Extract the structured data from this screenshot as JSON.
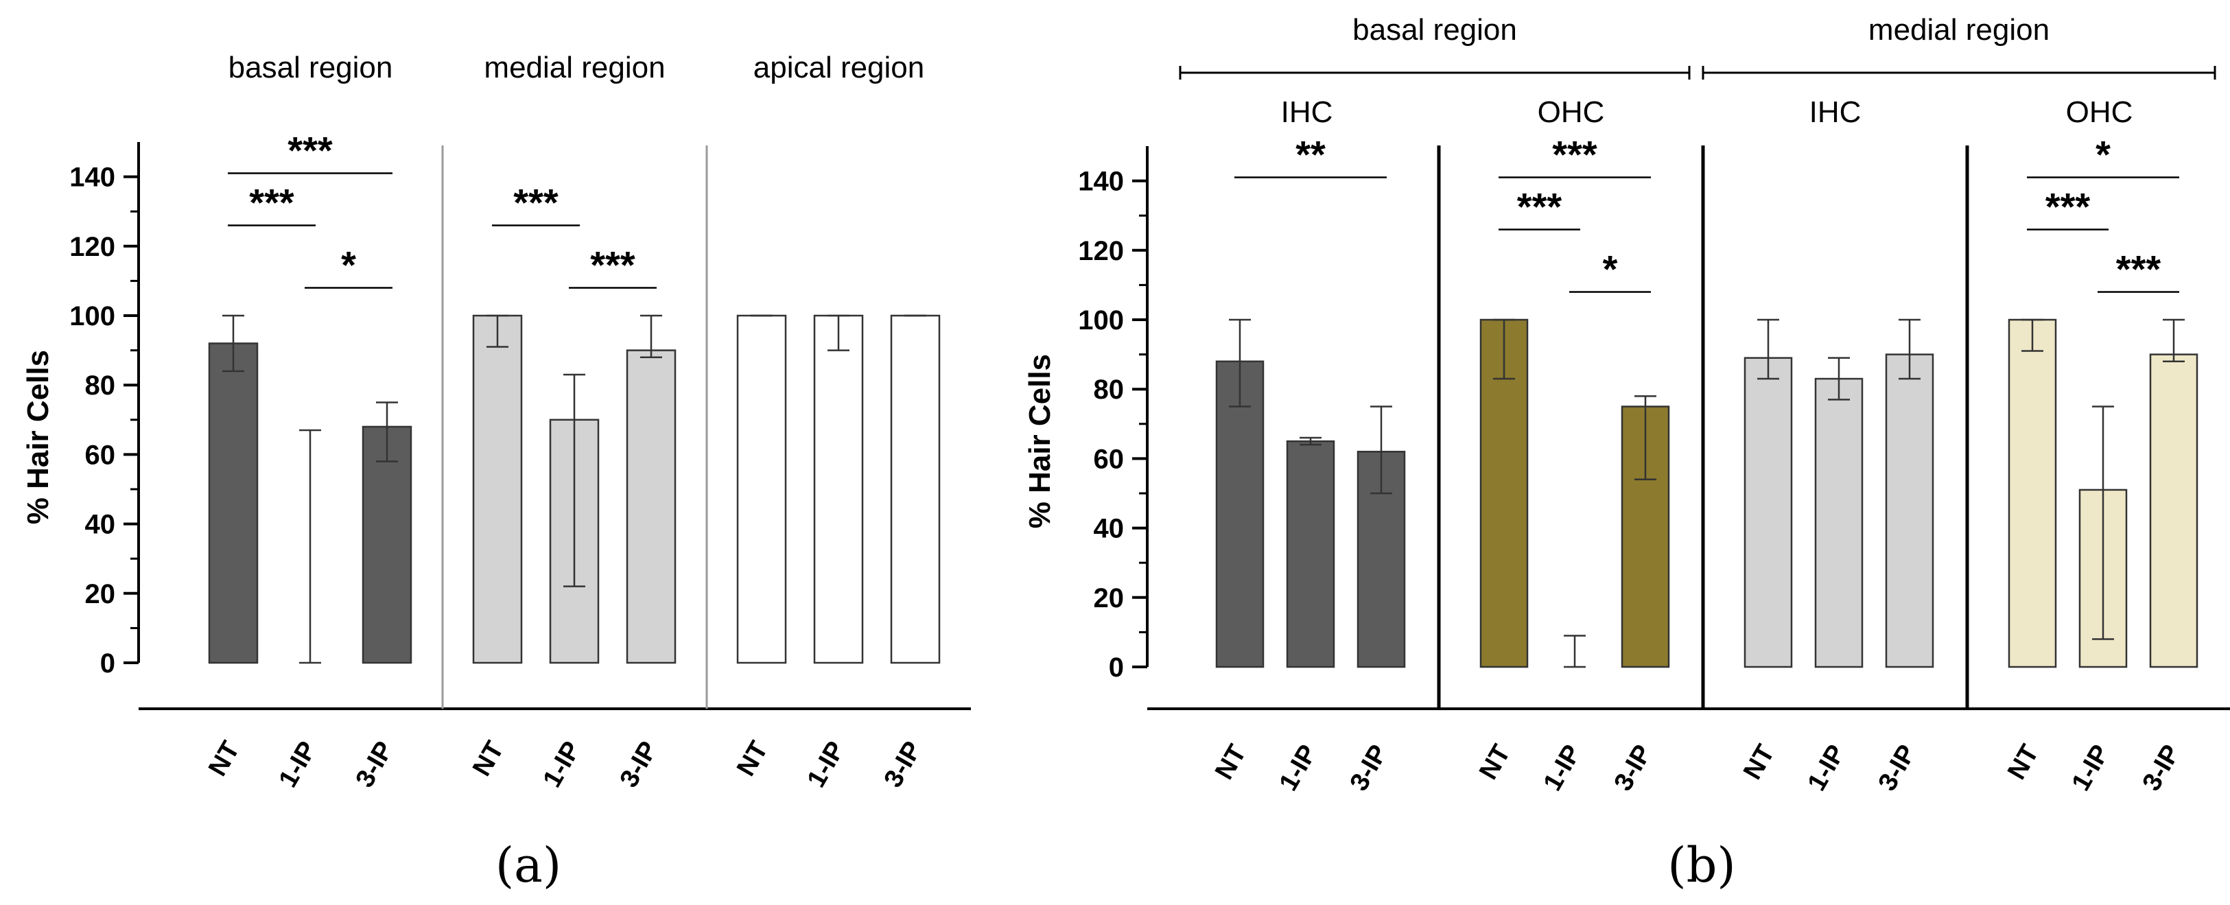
{
  "chart_data": [
    {
      "panel_label": "(a)",
      "type": "bar",
      "ylabel": "% Hair Cells",
      "ylim": [
        0,
        150
      ],
      "yticks": [
        0,
        20,
        40,
        60,
        80,
        100,
        120,
        140
      ],
      "categories": [
        "NT",
        "1-IP",
        "3-IP"
      ],
      "groups": [
        {
          "title": "basal region",
          "color": "#5c5c5c",
          "values": [
            92,
            0,
            68
          ],
          "err_low": [
            84,
            0,
            58
          ],
          "err_high": [
            100,
            67,
            75
          ],
          "brackets": [
            {
              "from": 0,
              "to": 2,
              "label": "***"
            },
            {
              "from": 0,
              "to": 1,
              "label": "***"
            },
            {
              "from": 1,
              "to": 2,
              "label": "*"
            }
          ]
        },
        {
          "title": "medial region",
          "color": "#d3d3d3",
          "values": [
            100,
            70,
            90
          ],
          "err_low": [
            91,
            22,
            88
          ],
          "err_high": [
            100,
            83,
            100
          ],
          "brackets": [
            {
              "from": 0,
              "to": 1,
              "label": "***"
            },
            {
              "from": 1,
              "to": 2,
              "label": "***"
            }
          ]
        },
        {
          "title": "apical region",
          "color": "#ffffff",
          "values": [
            100,
            100,
            100
          ],
          "err_low": [
            100,
            90,
            100
          ],
          "err_high": [
            100,
            100,
            100
          ],
          "brackets": []
        }
      ]
    },
    {
      "panel_label": "(b)",
      "type": "bar",
      "ylabel": "% Hair Cells",
      "ylim": [
        0,
        150
      ],
      "yticks": [
        0,
        20,
        40,
        60,
        80,
        100,
        120,
        140
      ],
      "categories": [
        "NT",
        "1-IP",
        "3-IP"
      ],
      "regions": [
        "basal region",
        "medial region"
      ],
      "groups": [
        {
          "title": "IHC",
          "region": "basal region",
          "color": "#5c5c5c",
          "values": [
            88,
            65,
            62
          ],
          "err_low": [
            75,
            64,
            50
          ],
          "err_high": [
            100,
            66,
            75
          ],
          "brackets": [
            {
              "from": 0,
              "to": 2,
              "label": "**"
            }
          ]
        },
        {
          "title": "OHC",
          "region": "basal region",
          "color": "#8c7a2e",
          "values": [
            100,
            0,
            75
          ],
          "err_low": [
            83,
            0,
            54
          ],
          "err_high": [
            100,
            9,
            78
          ],
          "brackets": [
            {
              "from": 0,
              "to": 2,
              "label": "***"
            },
            {
              "from": 0,
              "to": 1,
              "label": "***"
            },
            {
              "from": 1,
              "to": 2,
              "label": "*"
            }
          ]
        },
        {
          "title": "IHC",
          "region": "medial region",
          "color": "#d3d3d3",
          "values": [
            89,
            83,
            90
          ],
          "err_low": [
            83,
            77,
            83
          ],
          "err_high": [
            100,
            89,
            100
          ],
          "brackets": []
        },
        {
          "title": "OHC",
          "region": "medial region",
          "color": "#efe8c8",
          "values": [
            100,
            51,
            90
          ],
          "err_low": [
            91,
            8,
            88
          ],
          "err_high": [
            100,
            75,
            100
          ],
          "brackets": [
            {
              "from": 0,
              "to": 2,
              "label": "*"
            },
            {
              "from": 0,
              "to": 1,
              "label": "***"
            },
            {
              "from": 1,
              "to": 2,
              "label": "***"
            }
          ]
        }
      ]
    }
  ]
}
